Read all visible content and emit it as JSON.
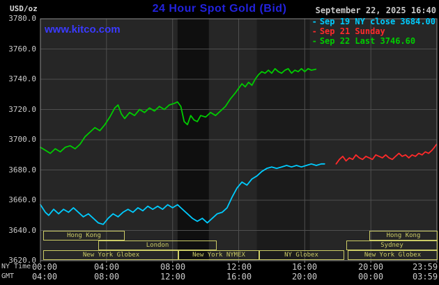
{
  "header": {
    "units_label": "USD/oz",
    "title": "24 Hour Spot Gold (Bid)",
    "datetime": "September 22, 2025 16:40",
    "watermark": "www.kitco.com"
  },
  "legend": [
    {
      "label": "Sep 19 NY close 3684.00",
      "color": "#00ccff"
    },
    {
      "label": "Sep 21 Sunday",
      "color": "#ff2a2a"
    },
    {
      "label": "Sep 22 Last 3746.60",
      "color": "#00cc00"
    }
  ],
  "axes": {
    "ny_time_label": "NY Time",
    "gmt_label": "GMT",
    "y_ticks": [
      {
        "value": 3780,
        "label": "3780.0"
      },
      {
        "value": 3760,
        "label": "3760.0"
      },
      {
        "value": 3740,
        "label": "3740.0"
      },
      {
        "value": 3720,
        "label": "3720.0"
      },
      {
        "value": 3700,
        "label": "3700.0"
      },
      {
        "value": 3680,
        "label": "3680.0"
      },
      {
        "value": 3660,
        "label": "3660.0"
      },
      {
        "value": 3640,
        "label": "3640.0"
      },
      {
        "value": 3620,
        "label": "3620.0"
      }
    ],
    "ny_ticks": [
      {
        "hour": 0,
        "label": "00:00"
      },
      {
        "hour": 4,
        "label": "04:00"
      },
      {
        "hour": 8,
        "label": "08:00"
      },
      {
        "hour": 12,
        "label": "12:00"
      },
      {
        "hour": 16,
        "label": "16:00"
      },
      {
        "hour": 20,
        "label": "20:00"
      },
      {
        "hour": 23.983,
        "label": "23:59"
      }
    ],
    "gmt_ticks": [
      {
        "hour": 0,
        "label": "04:00"
      },
      {
        "hour": 4,
        "label": "08:00"
      },
      {
        "hour": 8,
        "label": "12:00"
      },
      {
        "hour": 12,
        "label": "16:00"
      },
      {
        "hour": 16,
        "label": "20:00"
      },
      {
        "hour": 20,
        "label": "00:00"
      },
      {
        "hour": 23.983,
        "label": "03:59"
      }
    ]
  },
  "sessions": {
    "color": "#cccc66",
    "boxes": [
      {
        "label": "Hong Kong",
        "row": 0,
        "start": 0.15,
        "end": 5.0
      },
      {
        "label": "Hong Kong",
        "row": 0,
        "start": 19.9,
        "end": 23.95
      },
      {
        "label": "London",
        "row": 1,
        "start": 3.5,
        "end": 10.6
      },
      {
        "label": "Sydney",
        "row": 1,
        "start": 18.5,
        "end": 23.95
      },
      {
        "label": "New York Globex",
        "row": 2,
        "start": 0.15,
        "end": 8.3
      },
      {
        "label": "New York NYMEX",
        "row": 2,
        "start": 8.3,
        "end": 13.2
      },
      {
        "label": "NY Globex",
        "row": 2,
        "start": 13.2,
        "end": 18.3
      },
      {
        "label": "New York Globex",
        "row": 2,
        "start": 18.6,
        "end": 23.95
      }
    ]
  },
  "colors": {
    "background": "#000000",
    "plot_bg": "#262626",
    "band_dark": "#0f0f0f",
    "band_mid": "#1b1b1b",
    "grid": "#4f4f4f",
    "frame": "#8a8a8a",
    "title_blue": "#2222dd",
    "kitco_blue": "#3a3aff",
    "axis_text": "#cccccc"
  },
  "chart_data": {
    "type": "line",
    "title": "24 Hour Spot Gold (Bid)",
    "xlabel": "NY Time (hours)",
    "ylabel": "USD/oz",
    "x_range_hours": [
      0,
      24
    ],
    "ylim": [
      3620,
      3780
    ],
    "y_tick_step": 20,
    "x_gridline_hours": [
      4,
      8,
      12,
      16,
      20
    ],
    "shaded_bands_hours": [
      [
        8.3,
        10.2
      ],
      [
        13.1,
        16.3
      ]
    ],
    "legend_position": "top-right",
    "series": [
      {
        "name": "Sep 19 NY close",
        "close_value": 3684.0,
        "color": "#00ccff",
        "points": [
          [
            0,
            3657
          ],
          [
            0.3,
            3652
          ],
          [
            0.5,
            3650
          ],
          [
            0.8,
            3654
          ],
          [
            1.1,
            3651
          ],
          [
            1.4,
            3654
          ],
          [
            1.7,
            3652
          ],
          [
            2.0,
            3655
          ],
          [
            2.3,
            3652
          ],
          [
            2.6,
            3649
          ],
          [
            2.9,
            3651
          ],
          [
            3.2,
            3648
          ],
          [
            3.5,
            3645
          ],
          [
            3.8,
            3644
          ],
          [
            4.1,
            3648
          ],
          [
            4.4,
            3651
          ],
          [
            4.7,
            3649
          ],
          [
            5.0,
            3652
          ],
          [
            5.3,
            3654
          ],
          [
            5.6,
            3652
          ],
          [
            5.9,
            3655
          ],
          [
            6.2,
            3653
          ],
          [
            6.5,
            3656
          ],
          [
            6.8,
            3654
          ],
          [
            7.1,
            3656
          ],
          [
            7.4,
            3654
          ],
          [
            7.7,
            3657
          ],
          [
            8.0,
            3655
          ],
          [
            8.3,
            3657
          ],
          [
            8.6,
            3654
          ],
          [
            8.9,
            3651
          ],
          [
            9.2,
            3648
          ],
          [
            9.5,
            3646
          ],
          [
            9.8,
            3648
          ],
          [
            10.1,
            3645
          ],
          [
            10.4,
            3648
          ],
          [
            10.7,
            3651
          ],
          [
            11.0,
            3652
          ],
          [
            11.3,
            3655
          ],
          [
            11.6,
            3662
          ],
          [
            11.9,
            3668
          ],
          [
            12.2,
            3672
          ],
          [
            12.5,
            3670
          ],
          [
            12.8,
            3674
          ],
          [
            13.1,
            3676
          ],
          [
            13.4,
            3679
          ],
          [
            13.7,
            3681
          ],
          [
            14.0,
            3682
          ],
          [
            14.3,
            3681
          ],
          [
            14.6,
            3682
          ],
          [
            14.9,
            3683
          ],
          [
            15.2,
            3682
          ],
          [
            15.5,
            3683
          ],
          [
            15.8,
            3682
          ],
          [
            16.1,
            3683
          ],
          [
            16.4,
            3684
          ],
          [
            16.7,
            3683
          ],
          [
            17.0,
            3684
          ],
          [
            17.2,
            3684
          ]
        ]
      },
      {
        "name": "Sep 21 Sunday",
        "color": "#ff2a2a",
        "points": [
          [
            17.9,
            3684
          ],
          [
            18.1,
            3687
          ],
          [
            18.3,
            3689
          ],
          [
            18.5,
            3686
          ],
          [
            18.7,
            3688
          ],
          [
            18.9,
            3687
          ],
          [
            19.1,
            3690
          ],
          [
            19.3,
            3688
          ],
          [
            19.5,
            3687
          ],
          [
            19.7,
            3689
          ],
          [
            19.9,
            3688
          ],
          [
            20.1,
            3687
          ],
          [
            20.3,
            3690
          ],
          [
            20.5,
            3689
          ],
          [
            20.7,
            3688
          ],
          [
            20.9,
            3690
          ],
          [
            21.1,
            3688
          ],
          [
            21.3,
            3687
          ],
          [
            21.5,
            3689
          ],
          [
            21.7,
            3691
          ],
          [
            21.9,
            3689
          ],
          [
            22.1,
            3690
          ],
          [
            22.3,
            3688
          ],
          [
            22.5,
            3690
          ],
          [
            22.7,
            3689
          ],
          [
            22.9,
            3691
          ],
          [
            23.1,
            3690
          ],
          [
            23.3,
            3692
          ],
          [
            23.5,
            3691
          ],
          [
            23.7,
            3693
          ],
          [
            23.85,
            3695
          ],
          [
            23.983,
            3697
          ]
        ]
      },
      {
        "name": "Sep 22 Last",
        "last_value": 3746.6,
        "color": "#00cc00",
        "points": [
          [
            0,
            3695
          ],
          [
            0.3,
            3693
          ],
          [
            0.6,
            3691
          ],
          [
            0.9,
            3694
          ],
          [
            1.2,
            3692
          ],
          [
            1.5,
            3695
          ],
          [
            1.8,
            3696
          ],
          [
            2.1,
            3694
          ],
          [
            2.4,
            3697
          ],
          [
            2.7,
            3702
          ],
          [
            3.0,
            3705
          ],
          [
            3.3,
            3708
          ],
          [
            3.6,
            3706
          ],
          [
            3.9,
            3710
          ],
          [
            4.2,
            3715
          ],
          [
            4.5,
            3721
          ],
          [
            4.7,
            3723
          ],
          [
            4.9,
            3717
          ],
          [
            5.1,
            3714
          ],
          [
            5.4,
            3718
          ],
          [
            5.7,
            3716
          ],
          [
            6.0,
            3720
          ],
          [
            6.3,
            3718
          ],
          [
            6.6,
            3721
          ],
          [
            6.9,
            3719
          ],
          [
            7.2,
            3722
          ],
          [
            7.5,
            3720
          ],
          [
            7.8,
            3723
          ],
          [
            8.1,
            3724
          ],
          [
            8.3,
            3725
          ],
          [
            8.5,
            3722
          ],
          [
            8.7,
            3712
          ],
          [
            8.9,
            3710
          ],
          [
            9.1,
            3716
          ],
          [
            9.3,
            3713
          ],
          [
            9.5,
            3712
          ],
          [
            9.7,
            3716
          ],
          [
            10.0,
            3715
          ],
          [
            10.3,
            3718
          ],
          [
            10.6,
            3716
          ],
          [
            10.9,
            3719
          ],
          [
            11.2,
            3722
          ],
          [
            11.5,
            3727
          ],
          [
            11.8,
            3731
          ],
          [
            12.0,
            3734
          ],
          [
            12.2,
            3737
          ],
          [
            12.4,
            3735
          ],
          [
            12.6,
            3738
          ],
          [
            12.8,
            3736
          ],
          [
            13.0,
            3740
          ],
          [
            13.2,
            3743
          ],
          [
            13.4,
            3745
          ],
          [
            13.6,
            3744
          ],
          [
            13.8,
            3746
          ],
          [
            14.0,
            3744
          ],
          [
            14.2,
            3747
          ],
          [
            14.4,
            3745
          ],
          [
            14.6,
            3744
          ],
          [
            14.8,
            3746
          ],
          [
            15.0,
            3747
          ],
          [
            15.2,
            3744
          ],
          [
            15.4,
            3746
          ],
          [
            15.6,
            3745
          ],
          [
            15.8,
            3747
          ],
          [
            16.0,
            3745
          ],
          [
            16.2,
            3747
          ],
          [
            16.4,
            3746
          ],
          [
            16.67,
            3746.6
          ]
        ]
      }
    ]
  }
}
